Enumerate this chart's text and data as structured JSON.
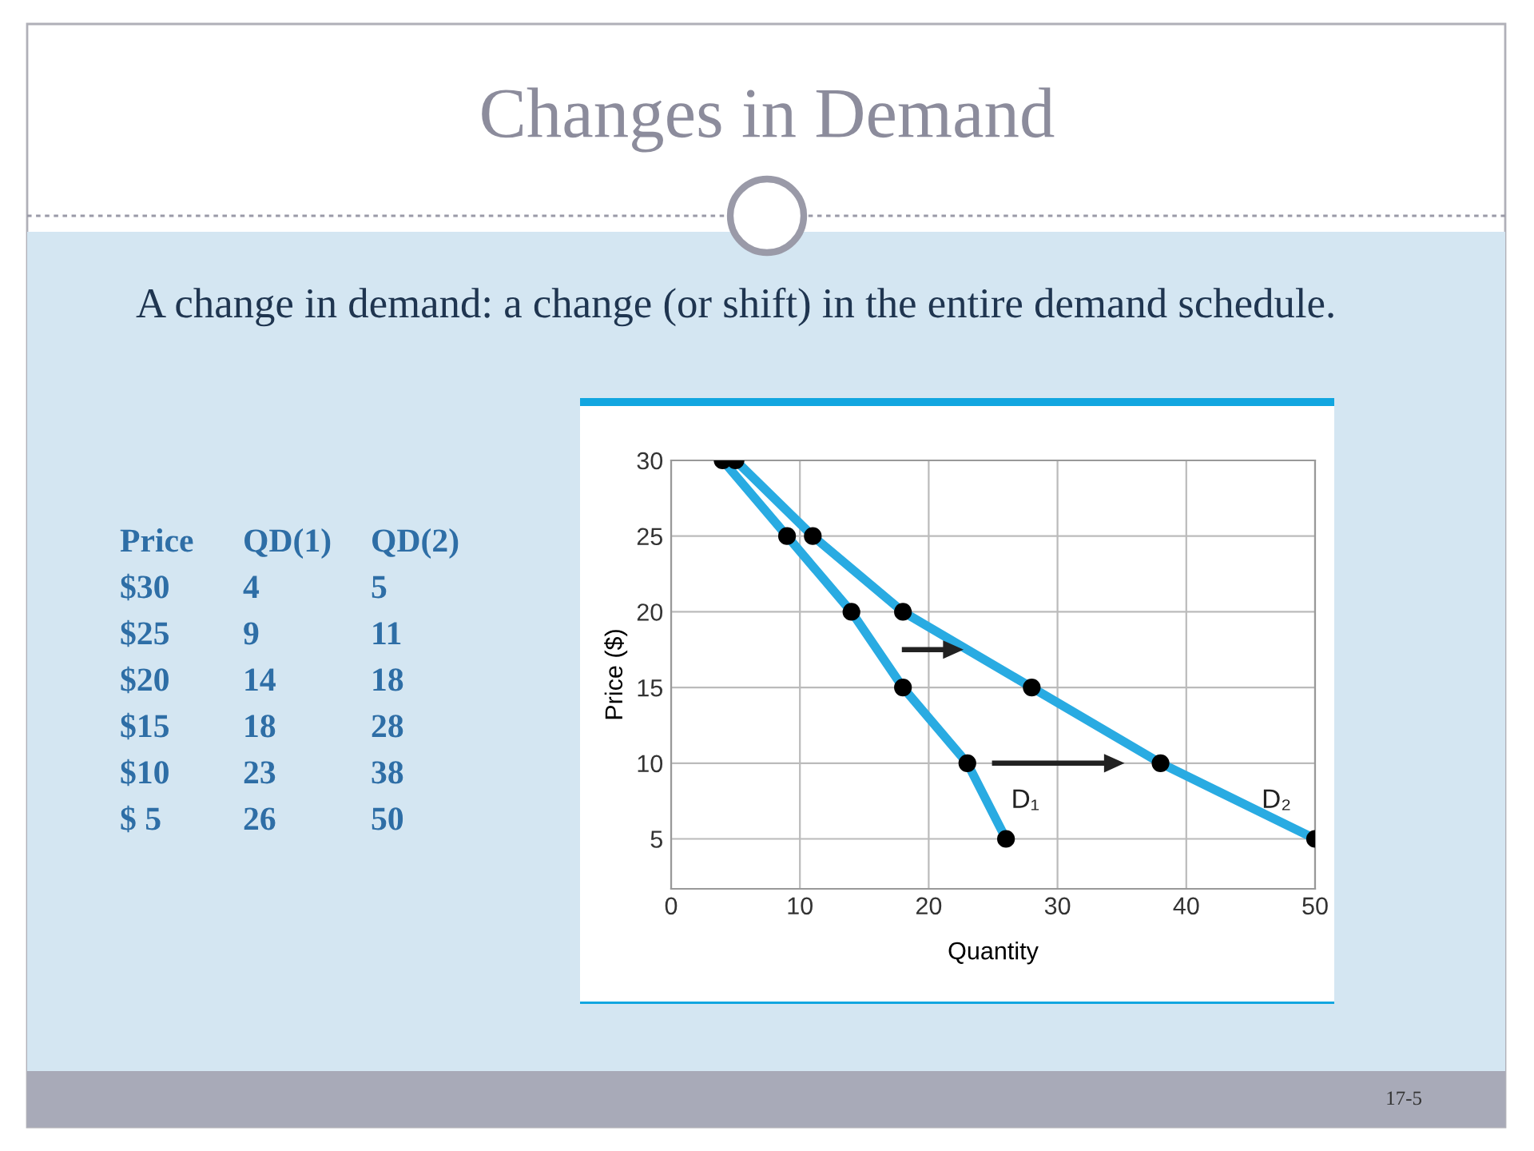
{
  "chart_data": {
    "type": "line",
    "title": "Changes in Demand",
    "subtitle": "A change in demand: a change (or shift) in the entire demand schedule.",
    "xlabel": "Quantity",
    "ylabel": "Price ($)",
    "series": [
      {
        "name": "D₁",
        "color": "#29abe2",
        "x": [
          4,
          9,
          14,
          18,
          23,
          26
        ],
        "values": [
          30,
          25,
          20,
          15,
          10,
          5
        ]
      },
      {
        "name": "D₂",
        "color": "#29abe2",
        "x": [
          5,
          11,
          18,
          28,
          38,
          50
        ],
        "values": [
          30,
          25,
          20,
          15,
          10,
          5
        ]
      }
    ],
    "xlim": [
      0,
      50
    ],
    "xticks": [
      0,
      10,
      20,
      30,
      40,
      50
    ],
    "ylim": [
      1.7,
      30
    ],
    "yticks": [
      5,
      10,
      15,
      20,
      25,
      30
    ],
    "grid": true,
    "marker": "circle",
    "line_style": "solid",
    "annotations": [
      "Price",
      "QD(1)",
      "QD(2)",
      "$30",
      "4",
      "5",
      "$25",
      "9",
      "11",
      "$20",
      "14",
      "18",
      "$15",
      "18",
      "28",
      "$10",
      "23",
      "38",
      "$ 5",
      "26",
      "50",
      "17-5"
    ]
  }
}
